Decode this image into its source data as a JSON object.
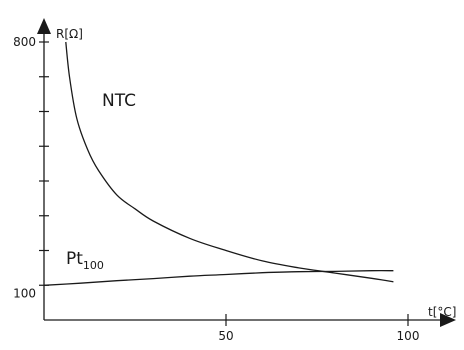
{
  "chart_data": {
    "type": "line",
    "title": "",
    "xlabel": "t[°C]",
    "ylabel": "R[Ω]",
    "x_ticks": [
      {
        "value": 50,
        "label": "50"
      },
      {
        "value": 100,
        "label": "100"
      }
    ],
    "y_ticks": [
      {
        "value": 100,
        "label": "100"
      },
      {
        "value": 800,
        "label": "800"
      }
    ],
    "xlim": [
      0,
      110
    ],
    "ylim": [
      0,
      850
    ],
    "grid": false,
    "legend": "none",
    "line_color": "#1a1a1a",
    "series": [
      {
        "name": "NTC",
        "x": [
          6,
          7,
          9,
          12,
          15,
          20,
          25,
          30,
          40,
          50,
          60,
          70,
          80,
          90,
          96
        ],
        "y": [
          800,
          700,
          580,
          490,
          430,
          360,
          320,
          285,
          235,
          200,
          170,
          150,
          135,
          120,
          110
        ]
      },
      {
        "name": "Pt",
        "name_subscript": "100",
        "x": [
          0,
          10,
          20,
          30,
          40,
          50,
          60,
          70,
          80,
          90,
          96
        ],
        "y": [
          100,
          106,
          113,
          119,
          126,
          131,
          136,
          139,
          140,
          142,
          142
        ]
      }
    ]
  }
}
